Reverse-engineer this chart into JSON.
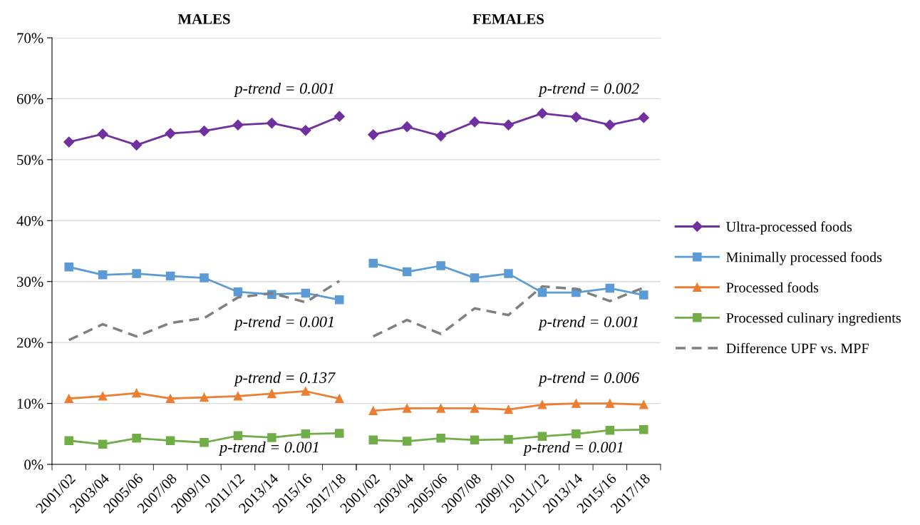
{
  "chart_data": [
    {
      "type": "line",
      "title": "MALES",
      "categories": [
        "2001/02",
        "2003/04",
        "2005/06",
        "2007/08",
        "2009/10",
        "2011/12",
        "2013/14",
        "2015/16",
        "2017/18"
      ],
      "ylim": [
        0,
        70
      ],
      "yticks": [
        {
          "value": 0,
          "label": "0%"
        },
        {
          "value": 10,
          "label": "10%"
        },
        {
          "value": 20,
          "label": "20%"
        },
        {
          "value": 30,
          "label": "30%"
        },
        {
          "value": 40,
          "label": "40%"
        },
        {
          "value": 50,
          "label": "50%"
        },
        {
          "value": 60,
          "label": "60%"
        },
        {
          "value": 70,
          "label": "70%"
        }
      ],
      "grid": "y",
      "legend": "right",
      "series": [
        {
          "name": "Ultra-processed foods",
          "color": "#7030a0",
          "marker": "diamond",
          "line_style": "solid",
          "values": [
            52.9,
            54.2,
            52.4,
            54.3,
            54.7,
            55.7,
            56.0,
            54.8,
            57.1
          ]
        },
        {
          "name": "Minimally processed foods",
          "color": "#5b9bd5",
          "marker": "square",
          "line_style": "solid",
          "values": [
            32.4,
            31.1,
            31.3,
            30.9,
            30.6,
            28.3,
            27.9,
            28.1,
            27.0
          ]
        },
        {
          "name": "Processed foods",
          "color": "#ed7d31",
          "marker": "triangle",
          "line_style": "solid",
          "values": [
            10.8,
            11.2,
            11.7,
            10.8,
            11.0,
            11.2,
            11.6,
            12.0,
            10.8
          ]
        },
        {
          "name": "Processed culinary ingredients",
          "color": "#70ad47",
          "marker": "square",
          "line_style": "solid",
          "values": [
            3.9,
            3.3,
            4.3,
            3.9,
            3.6,
            4.7,
            4.4,
            5.0,
            5.1
          ]
        },
        {
          "name": "Difference UPF vs. MPF",
          "color": "#7f7f7f",
          "marker": "none",
          "line_style": "dashed",
          "values": [
            20.4,
            23.0,
            21.0,
            23.2,
            24.0,
            27.4,
            28.1,
            26.6,
            30.1
          ]
        }
      ],
      "annotations": [
        "p-trend = 0.001",
        "p-trend = 0.001",
        "p-trend = 0.137",
        "p-trend = 0.001"
      ]
    },
    {
      "type": "line",
      "title": "FEMALES",
      "categories": [
        "2001/02",
        "2003/04",
        "2005/06",
        "2007/08",
        "2009/10",
        "2011/12",
        "2013/14",
        "2015/16",
        "2017/18"
      ],
      "ylim": [
        0,
        70
      ],
      "tick_labels": "x",
      "grid": "y",
      "series": [
        {
          "color": "#7030a0",
          "marker": "diamond",
          "line_style": "solid",
          "values": [
            54.1,
            55.4,
            53.9,
            56.2,
            55.7,
            57.6,
            57.0,
            55.7,
            56.9
          ]
        },
        {
          "color": "#5b9bd5",
          "marker": "square",
          "line_style": "solid",
          "values": [
            33.0,
            31.6,
            32.6,
            30.6,
            31.3,
            28.2,
            28.2,
            28.9,
            27.8
          ]
        },
        {
          "color": "#ed7d31",
          "marker": "triangle",
          "line_style": "solid",
          "values": [
            8.8,
            9.2,
            9.2,
            9.2,
            9.0,
            9.8,
            10.0,
            10.0,
            9.8
          ]
        },
        {
          "color": "#70ad47",
          "marker": "square",
          "line_style": "solid",
          "values": [
            4.0,
            3.8,
            4.3,
            4.0,
            4.1,
            4.6,
            5.0,
            5.6,
            5.7
          ]
        },
        {
          "color": "#7f7f7f",
          "marker": "none",
          "line_style": "dashed",
          "values": [
            21.0,
            23.7,
            21.4,
            25.6,
            24.5,
            29.2,
            28.8,
            26.8,
            29.0
          ]
        }
      ],
      "annotations": [
        "p-trend = 0.002",
        "p-trend = 0.001",
        "p-trend = 0.006",
        "p-trend = 0.001"
      ]
    }
  ]
}
